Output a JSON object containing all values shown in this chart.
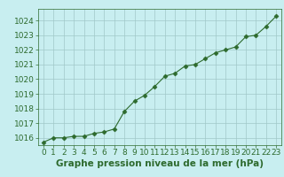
{
  "x": [
    0,
    1,
    2,
    3,
    4,
    5,
    6,
    7,
    8,
    9,
    10,
    11,
    12,
    13,
    14,
    15,
    16,
    17,
    18,
    19,
    20,
    21,
    22,
    23
  ],
  "y": [
    1015.7,
    1016.0,
    1016.0,
    1016.1,
    1016.1,
    1016.3,
    1016.4,
    1016.6,
    1017.8,
    1018.5,
    1018.9,
    1019.5,
    1020.2,
    1020.4,
    1020.9,
    1021.0,
    1021.4,
    1021.8,
    1022.0,
    1022.2,
    1022.9,
    1023.0,
    1023.6,
    1024.3
  ],
  "ylim": [
    1015.5,
    1024.8
  ],
  "xlim": [
    -0.5,
    23.5
  ],
  "yticks": [
    1016,
    1017,
    1018,
    1019,
    1020,
    1021,
    1022,
    1023,
    1024
  ],
  "xticks": [
    0,
    1,
    2,
    3,
    4,
    5,
    6,
    7,
    8,
    9,
    10,
    11,
    12,
    13,
    14,
    15,
    16,
    17,
    18,
    19,
    20,
    21,
    22,
    23
  ],
  "xlabel": "Graphe pression niveau de la mer (hPa)",
  "line_color": "#2d6a2d",
  "marker": "D",
  "marker_size": 2.5,
  "background_color": "#c8eef0",
  "grid_color": "#a0c8c8",
  "tick_color": "#2d6a2d",
  "xlabel_color": "#2d6a2d",
  "xlabel_fontsize": 7.5,
  "tick_fontsize": 6.5,
  "linewidth": 0.8
}
